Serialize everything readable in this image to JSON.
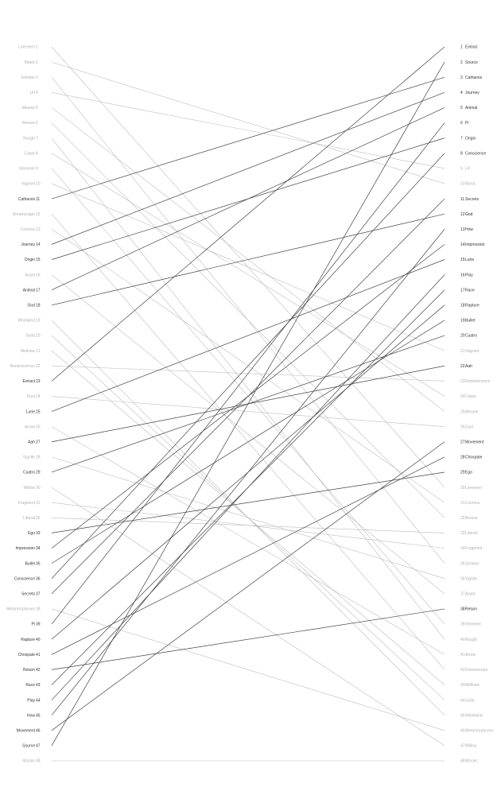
{
  "chart_data": {
    "type": "slope",
    "title": "",
    "left_axis_range": [
      1,
      48
    ],
    "right_axis_range": [
      1,
      48
    ],
    "highlight_color": "#444444",
    "muted_color": "#bdbdbd",
    "items": [
      {
        "name": "Extract",
        "left": 23,
        "right": 1,
        "highlight": true
      },
      {
        "name": "Source",
        "left": 47,
        "right": 2,
        "highlight": true
      },
      {
        "name": "Catharsis",
        "left": 11,
        "right": 3,
        "highlight": true
      },
      {
        "name": "Journey",
        "left": 14,
        "right": 4,
        "highlight": true
      },
      {
        "name": "Animal",
        "left": 17,
        "right": 5,
        "highlight": true
      },
      {
        "name": "Pi",
        "left": 39,
        "right": 6,
        "highlight": true
      },
      {
        "name": "Origin",
        "left": 15,
        "right": 7,
        "highlight": true
      },
      {
        "name": "Conscience",
        "left": 36,
        "right": 8,
        "highlight": true
      },
      {
        "name": "Uri",
        "left": 4,
        "right": 9,
        "highlight": false
      },
      {
        "name": "Manic",
        "left": 2,
        "right": 10,
        "highlight": false
      },
      {
        "name": "Secrets",
        "left": 37,
        "right": 11,
        "highlight": true
      },
      {
        "name": "God",
        "left": 18,
        "right": 12,
        "highlight": true
      },
      {
        "name": "How",
        "left": 45,
        "right": 13,
        "highlight": true
      },
      {
        "name": "Impression",
        "left": 34,
        "right": 14,
        "highlight": true
      },
      {
        "name": "Lurie",
        "left": 25,
        "right": 15,
        "highlight": true
      },
      {
        "name": "Play",
        "left": 44,
        "right": 16,
        "highlight": true
      },
      {
        "name": "Race",
        "left": 43,
        "right": 17,
        "highlight": true
      },
      {
        "name": "Rapture",
        "left": 40,
        "right": 18,
        "highlight": true
      },
      {
        "name": "Bullet",
        "left": 35,
        "right": 19,
        "highlight": true
      },
      {
        "name": "Cuatro",
        "left": 29,
        "right": 20,
        "highlight": true
      },
      {
        "name": "Vagrant",
        "left": 10,
        "right": 21,
        "highlight": false
      },
      {
        "name": "Aah",
        "left": 27,
        "right": 22,
        "highlight": true
      },
      {
        "name": "Reminiscence",
        "left": 22,
        "right": 23,
        "highlight": false
      },
      {
        "name": "Carpe",
        "left": 8,
        "right": 24,
        "highlight": false
      },
      {
        "name": "Meanie",
        "left": 5,
        "right": 25,
        "highlight": false
      },
      {
        "name": "Dust",
        "left": 24,
        "right": 26,
        "highlight": false
      },
      {
        "name": "Movement",
        "left": 46,
        "right": 27,
        "highlight": true
      },
      {
        "name": "Choxpate",
        "left": 41,
        "right": 28,
        "highlight": true
      },
      {
        "name": "Ego",
        "left": 33,
        "right": 29,
        "highlight": true
      },
      {
        "name": "Lareseen",
        "left": 1,
        "right": 30,
        "highlight": false
      },
      {
        "name": "Cosmos",
        "left": 13,
        "right": 31,
        "highlight": false
      },
      {
        "name": "Breeze",
        "left": 6,
        "right": 32,
        "highlight": false
      },
      {
        "name": "Liberal",
        "left": 32,
        "right": 33,
        "highlight": false
      },
      {
        "name": "Fragment",
        "left": 31,
        "right": 34,
        "highlight": false
      },
      {
        "name": "Somber",
        "left": 3,
        "right": 35,
        "highlight": false
      },
      {
        "name": "Vignite",
        "left": 28,
        "right": 36,
        "highlight": false
      },
      {
        "name": "Avant",
        "left": 16,
        "right": 37,
        "highlight": false
      },
      {
        "name": "Return",
        "left": 42,
        "right": 38,
        "highlight": true
      },
      {
        "name": "Shimmer",
        "left": 9,
        "right": 39,
        "highlight": false
      },
      {
        "name": "Rough",
        "left": 7,
        "right": 40,
        "highlight": false
      },
      {
        "name": "Arrow",
        "left": 26,
        "right": 41,
        "highlight": false
      },
      {
        "name": "Dreamscape",
        "left": 12,
        "right": 42,
        "highlight": false
      },
      {
        "name": "Mellows",
        "left": 21,
        "right": 43,
        "highlight": false
      },
      {
        "name": "Soda",
        "left": 20,
        "right": 44,
        "highlight": false
      },
      {
        "name": "Whirlwind",
        "left": 19,
        "right": 45,
        "highlight": false
      },
      {
        "name": "Metamorphoses",
        "left": 38,
        "right": 46,
        "highlight": false
      },
      {
        "name": "Willow",
        "left": 30,
        "right": 47,
        "highlight": false
      },
      {
        "name": "Mosaic",
        "left": 48,
        "right": 48,
        "highlight": false
      }
    ]
  }
}
